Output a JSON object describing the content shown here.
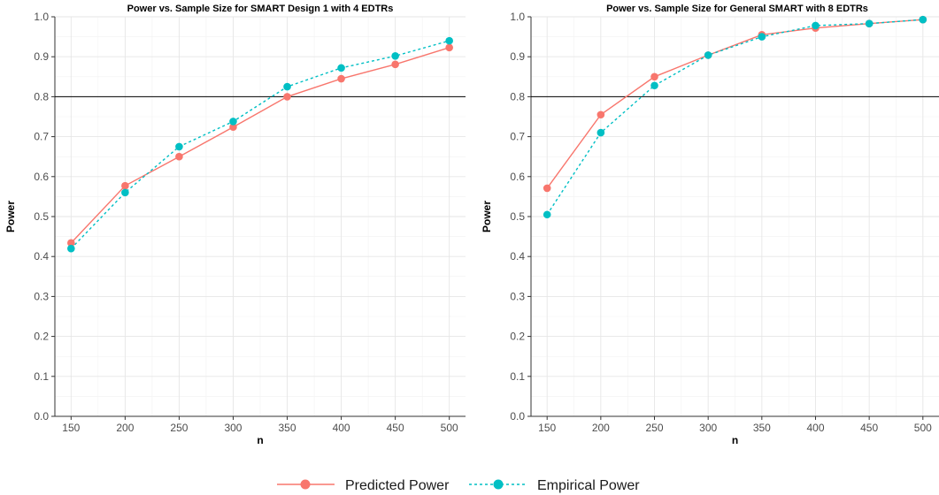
{
  "chart_data": [
    {
      "type": "line",
      "title": "Power vs. Sample Size for SMART Design 1 with 4 EDTRs",
      "xlabel": "n",
      "ylabel": "Power",
      "x": [
        150,
        200,
        250,
        300,
        350,
        400,
        450,
        500
      ],
      "xticks": [
        "150",
        "200",
        "250",
        "300",
        "350",
        "400",
        "450",
        "500"
      ],
      "yticks": [
        "0.0",
        "0.1",
        "0.2",
        "0.3",
        "0.4",
        "0.5",
        "0.6",
        "0.7",
        "0.8",
        "0.9",
        "1.0"
      ],
      "xlim": [
        135,
        515
      ],
      "ylim": [
        0,
        1
      ],
      "reference_line": 0.8,
      "series": [
        {
          "name": "Predicted Power",
          "color": "#f8766d",
          "dash": "solid",
          "values": [
            0.434,
            0.577,
            0.65,
            0.724,
            0.8,
            0.845,
            0.881,
            0.923
          ]
        },
        {
          "name": "Empirical Power",
          "color": "#00bfc4",
          "dash": "dashed",
          "values": [
            0.42,
            0.56,
            0.675,
            0.738,
            0.825,
            0.872,
            0.902,
            0.94
          ]
        }
      ]
    },
    {
      "type": "line",
      "title": "Power vs. Sample Size for General SMART with 8 EDTRs",
      "xlabel": "n",
      "ylabel": "Power",
      "x": [
        150,
        200,
        250,
        300,
        350,
        400,
        450,
        500
      ],
      "xticks": [
        "150",
        "200",
        "250",
        "300",
        "350",
        "400",
        "450",
        "500"
      ],
      "yticks": [
        "0.0",
        "0.1",
        "0.2",
        "0.3",
        "0.4",
        "0.5",
        "0.6",
        "0.7",
        "0.8",
        "0.9",
        "1.0"
      ],
      "xlim": [
        135,
        515
      ],
      "ylim": [
        0,
        1
      ],
      "reference_line": 0.8,
      "series": [
        {
          "name": "Predicted Power",
          "color": "#f8766d",
          "dash": "solid",
          "values": [
            0.571,
            0.755,
            0.85,
            0.904,
            0.955,
            0.972,
            0.983,
            0.993
          ]
        },
        {
          "name": "Empirical Power",
          "color": "#00bfc4",
          "dash": "dashed",
          "values": [
            0.505,
            0.71,
            0.828,
            0.904,
            0.95,
            0.978,
            0.983,
            0.993
          ]
        }
      ]
    }
  ],
  "legend": {
    "position": "bottom",
    "items": [
      {
        "label": "Predicted Power",
        "color": "#f8766d",
        "dash": "solid"
      },
      {
        "label": "Empirical Power",
        "color": "#00bfc4",
        "dash": "dashed"
      }
    ]
  }
}
